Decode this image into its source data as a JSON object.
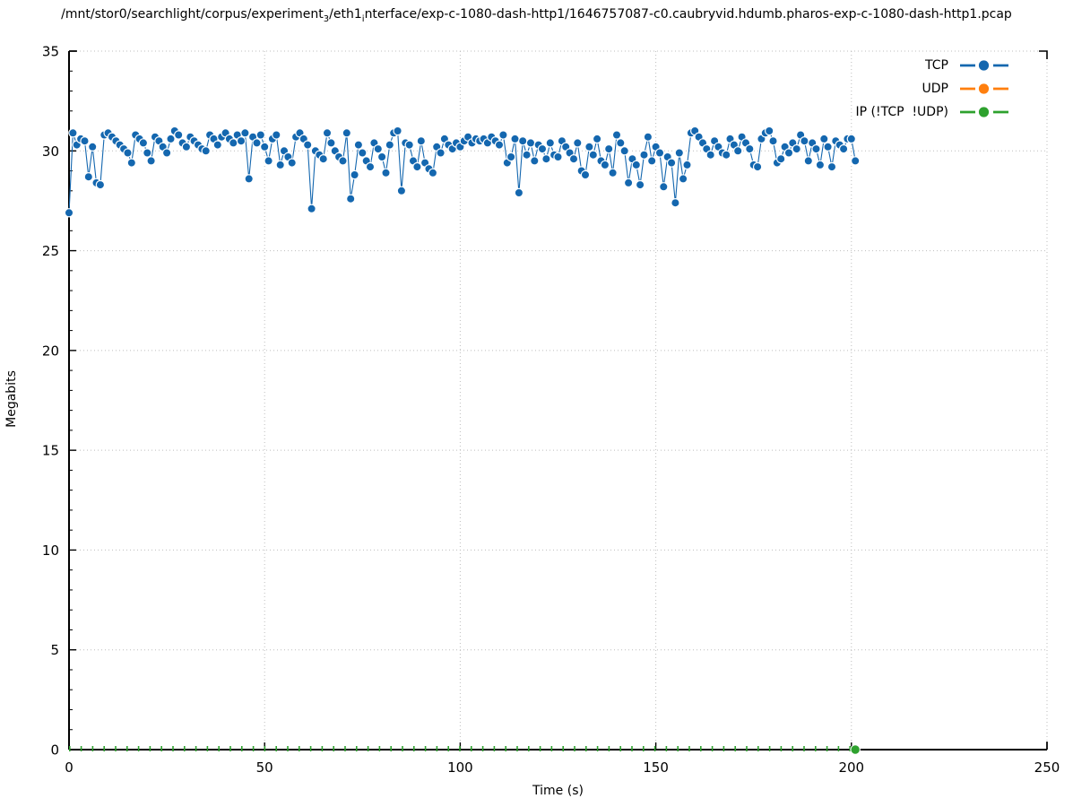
{
  "figure": {
    "title": {
      "part1": "/mnt/stor0/searchlight/corpus/experiment",
      "sub1": "3",
      "part2": "/eth1",
      "sub2": "i",
      "part3": "nterface/exp-c-1080-dash-http1/1646757087-c0.caubryvid.hdumb.pharos-exp-c-1080-dash-http1.pcap"
    }
  },
  "chart_data": {
    "type": "line",
    "title": "/mnt/stor0/searchlight/corpus/experiment_3/eth1_interface/exp-c-1080-dash-http1/1646757087-c0.caubryvid.hdumb.pharos-exp-c-1080-dash-http1.pcap",
    "xlabel": "Time (s)",
    "ylabel": "Megabits",
    "xlim": [
      0,
      250
    ],
    "ylim": [
      0,
      35
    ],
    "xticks": [
      0,
      50,
      100,
      150,
      200,
      250
    ],
    "yticks": [
      0,
      5,
      10,
      15,
      20,
      25,
      30,
      35
    ],
    "y_minor_step": 1,
    "grid": "dotted",
    "legend_position": "top-right-inside",
    "series": [
      {
        "name": "TCP",
        "color": "#1467af",
        "style": "linespoints-solid",
        "marker": "filled-circle-white-edge",
        "t0": 0,
        "dt": 1,
        "values": [
          26.9,
          30.9,
          30.3,
          30.6,
          30.5,
          28.7,
          30.2,
          28.4,
          28.3,
          30.8,
          30.9,
          30.7,
          30.5,
          30.3,
          30.1,
          29.9,
          29.4,
          30.8,
          30.6,
          30.4,
          29.9,
          29.5,
          30.7,
          30.5,
          30.2,
          29.9,
          30.6,
          31.0,
          30.8,
          30.4,
          30.2,
          30.7,
          30.5,
          30.3,
          30.1,
          30.0,
          30.8,
          30.6,
          30.3,
          30.7,
          30.9,
          30.6,
          30.4,
          30.8,
          30.5,
          30.9,
          28.6,
          30.7,
          30.4,
          30.8,
          30.2,
          29.5,
          30.6,
          30.8,
          29.3,
          30.0,
          29.7,
          29.4,
          30.7,
          30.9,
          30.6,
          30.3,
          27.1,
          30.0,
          29.8,
          29.6,
          30.9,
          30.4,
          30.0,
          29.7,
          29.5,
          30.9,
          27.6,
          28.8,
          30.3,
          29.9,
          29.5,
          29.2,
          30.4,
          30.1,
          29.7,
          28.9,
          30.3,
          30.9,
          31.0,
          28.0,
          30.4,
          30.3,
          29.5,
          29.2,
          30.5,
          29.4,
          29.1,
          28.9,
          30.2,
          29.9,
          30.6,
          30.3,
          30.1,
          30.4,
          30.2,
          30.5,
          30.7,
          30.4,
          30.6,
          30.5,
          30.6,
          30.4,
          30.7,
          30.5,
          30.3,
          30.8,
          29.4,
          29.7,
          30.6,
          27.9,
          30.5,
          29.8,
          30.4,
          29.5,
          30.3,
          30.1,
          29.6,
          30.4,
          29.8,
          29.7,
          30.5,
          30.2,
          29.9,
          29.6,
          30.4,
          29.0,
          28.8,
          30.2,
          29.8,
          30.6,
          29.5,
          29.3,
          30.1,
          28.9,
          30.8,
          30.4,
          30.0,
          28.4,
          29.6,
          29.3,
          28.3,
          29.8,
          30.7,
          29.5,
          30.2,
          29.9,
          28.2,
          29.7,
          29.4,
          27.4,
          29.9,
          28.6,
          29.3,
          30.9,
          31.0,
          30.7,
          30.4,
          30.1,
          29.8,
          30.5,
          30.2,
          29.9,
          29.8,
          30.6,
          30.3,
          30.0,
          30.7,
          30.4,
          30.1,
          29.3,
          29.2,
          30.6,
          30.9,
          31.0,
          30.5,
          29.4,
          29.6,
          30.2,
          29.9,
          30.4,
          30.1,
          30.8,
          30.5,
          29.5,
          30.4,
          30.1,
          29.3,
          30.6,
          30.2,
          29.2,
          30.5,
          30.3,
          30.1,
          30.6,
          30.6,
          29.5
        ]
      },
      {
        "name": "UDP",
        "color": "#ff7f0e",
        "style": "linespoints-solid",
        "marker": "filled-circle",
        "values": []
      },
      {
        "name": "IP (!TCP  !UDP)",
        "color": "#2ea12e",
        "style": "dashed-line-along-zero",
        "marker": "filled-circle-at-end",
        "x_start": 0,
        "x_end": 201,
        "y": 0
      }
    ]
  }
}
